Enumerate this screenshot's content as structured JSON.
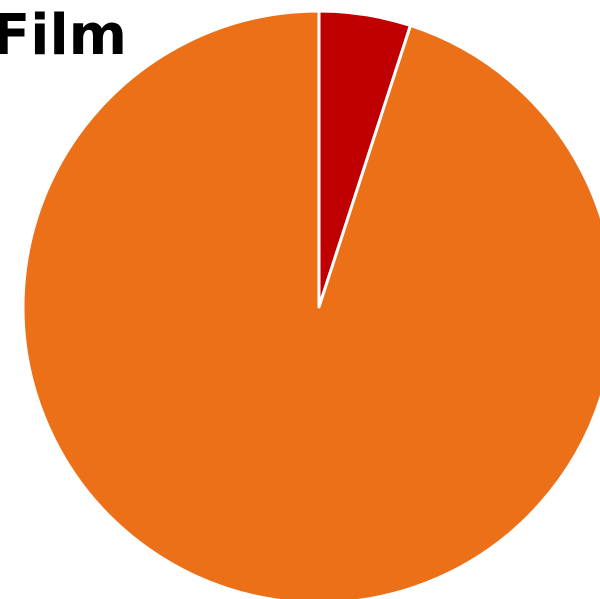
{
  "chart_data": {
    "type": "pie",
    "title": "Film",
    "start_angle_deg": 0,
    "direction": "clockwise",
    "slices": [
      {
        "value": 5,
        "color": "#c00000"
      },
      {
        "value": 95,
        "color": "#ec7018"
      }
    ],
    "slice_border_color": "#ffffff",
    "background": "#ffffff"
  }
}
